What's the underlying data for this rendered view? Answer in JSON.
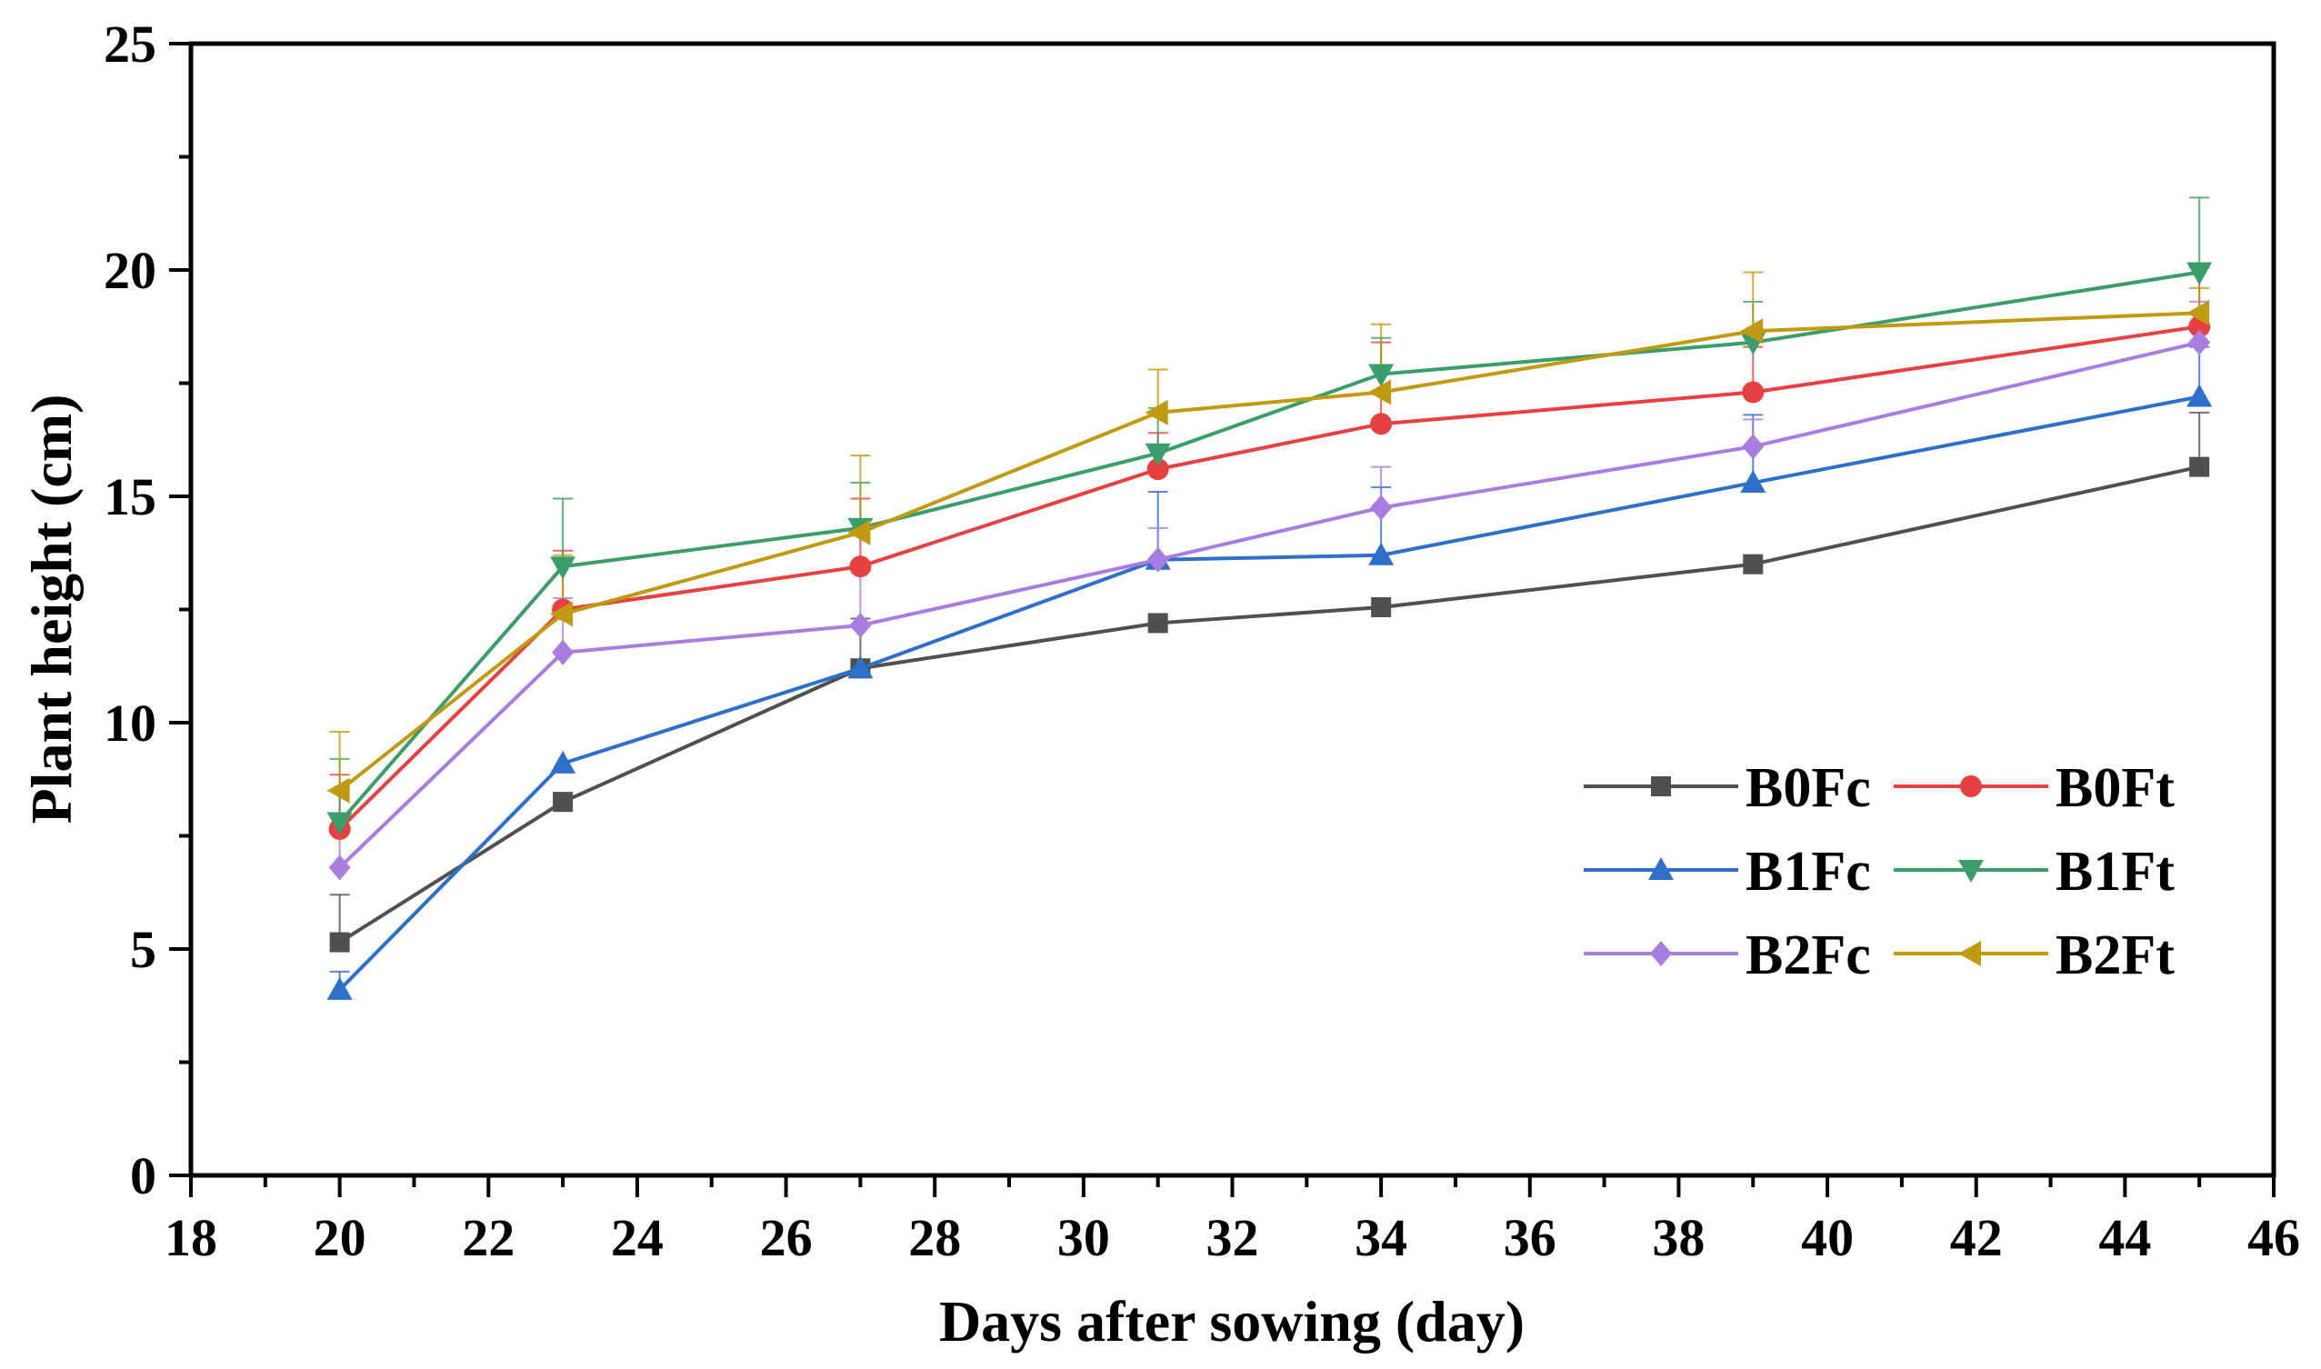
{
  "chart_data": {
    "type": "line",
    "xlabel": "Days after sowing (day)",
    "ylabel": "Plant height (cm)",
    "xlim": [
      18,
      46
    ],
    "ylim": [
      0,
      25
    ],
    "x_ticks": [
      "18",
      "20",
      "22",
      "24",
      "26",
      "28",
      "30",
      "32",
      "34",
      "36",
      "38",
      "40",
      "42",
      "44",
      "46"
    ],
    "y_ticks": [
      "0",
      "5",
      "10",
      "15",
      "20",
      "25"
    ],
    "grid": false,
    "legend_position": "lower-right",
    "x": [
      20,
      23,
      27,
      31,
      34,
      39,
      45
    ],
    "series": [
      {
        "name": "B0Fc",
        "color": "#505050",
        "marker": "square",
        "values": [
          5.15,
          8.25,
          11.2,
          12.2,
          12.55,
          13.5,
          15.65
        ],
        "errors": [
          1.05,
          0,
          1.1,
          0,
          0,
          0,
          1.2
        ]
      },
      {
        "name": "B0Ft",
        "color": "#e84040",
        "marker": "circle",
        "values": [
          7.65,
          12.5,
          13.45,
          15.6,
          16.6,
          17.3,
          18.75
        ],
        "errors": [
          1.2,
          1.3,
          1.5,
          0.8,
          1.8,
          1.0,
          1.3
        ]
      },
      {
        "name": "B1Fc",
        "color": "#2e6fc9",
        "marker": "triangle-up",
        "values": [
          4.1,
          9.1,
          11.2,
          13.6,
          13.7,
          15.3,
          17.2
        ],
        "errors": [
          0.4,
          0,
          0,
          1.5,
          1.5,
          1.5,
          1.1
        ]
      },
      {
        "name": "B1Ft",
        "color": "#3a9e6a",
        "marker": "triangle-down",
        "values": [
          7.8,
          13.45,
          14.3,
          15.95,
          17.7,
          18.4,
          19.95
        ],
        "errors": [
          1.4,
          1.5,
          1.0,
          1.0,
          0.8,
          0.9,
          1.65
        ]
      },
      {
        "name": "B2Fc",
        "color": "#a97de0",
        "marker": "diamond",
        "values": [
          6.8,
          11.55,
          12.15,
          13.6,
          14.75,
          16.1,
          18.4
        ],
        "errors": [
          0.8,
          1.2,
          1.2,
          0.7,
          0.9,
          0.6,
          0.9
        ]
      },
      {
        "name": "B2Ft",
        "color": "#c09a10",
        "marker": "triangle-left",
        "values": [
          8.5,
          12.4,
          14.2,
          16.85,
          17.3,
          18.65,
          19.05
        ],
        "errors": [
          1.3,
          1.3,
          1.7,
          0.95,
          1.5,
          1.3,
          0.55
        ]
      }
    ],
    "legend_labels": [
      "B0Fc",
      "B0Ft",
      "B1Fc",
      "B1Ft",
      "B2Fc",
      "B2Ft"
    ]
  }
}
